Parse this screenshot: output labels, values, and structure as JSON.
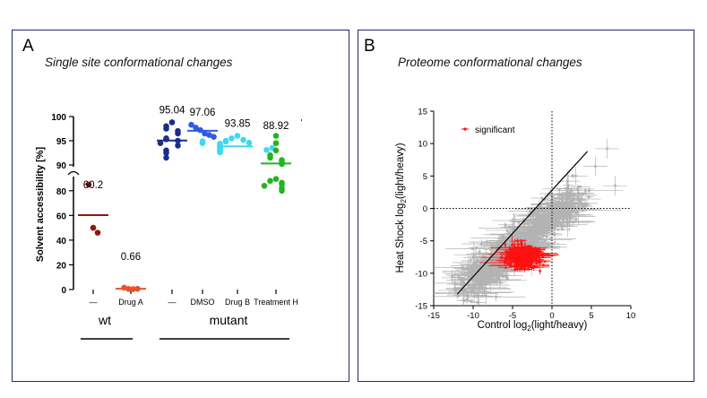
{
  "panels": {
    "a": {
      "letter": "A",
      "title": "Single site conformational changes"
    },
    "b": {
      "letter": "B",
      "title": "Proteome conformational changes"
    }
  },
  "chart_data": [
    {
      "type": "scatter",
      "ylabel": "Solvent accessibility [%]",
      "yaxis_break": {
        "lower": [
          0,
          90
        ],
        "upper": [
          90,
          100
        ]
      },
      "yticks_lower": [
        0,
        20,
        40,
        60,
        80
      ],
      "yticks_upper": [
        90,
        95,
        100
      ],
      "categories": [
        "—",
        "Drug A",
        "—",
        "DMSO",
        "Drug B",
        "Treatment H"
      ],
      "groups": [
        {
          "label": "wt",
          "categories": [
            0,
            1
          ]
        },
        {
          "label": "mutant",
          "categories": [
            2,
            3,
            4,
            5
          ]
        }
      ],
      "colors": [
        "#8b1a0e",
        "#e8532a",
        "#1a2e8c",
        "#2f5ce0",
        "#3fd8f0",
        "#22b422"
      ],
      "series": [
        {
          "category": "—",
          "mean": 60.2,
          "mean_label": "60.2",
          "points": [
            85,
            50,
            46
          ]
        },
        {
          "category": "Drug A",
          "mean": 0.66,
          "mean_label": "0.66",
          "points": [
            1.5,
            0.5,
            0.3,
            0.6
          ]
        },
        {
          "category": "—",
          "mean": 95.04,
          "mean_label": "95.04",
          "points": [
            98.8,
            98,
            97.5,
            97,
            96.5,
            95.5,
            95.3,
            95,
            94.5,
            94,
            93,
            92.5,
            91.5
          ]
        },
        {
          "category": "DMSO",
          "mean": 97.06,
          "mean_label": "97.06",
          "points": [
            98.3,
            97.7,
            97.2,
            96.5,
            96.2,
            95.8
          ]
        },
        {
          "category": "Drug B",
          "mean": 93.85,
          "mean_label": "93.85",
          "points": [
            96,
            95.5,
            95.2,
            95,
            94.8,
            94.6,
            94.4,
            94.2,
            94,
            93.8,
            93.6,
            93.4,
            93.2,
            93,
            92.8,
            92.6,
            94.5,
            93.5,
            94.9,
            93.1
          ]
        },
        {
          "category": "Treatment H",
          "mean": 88.92,
          "mean_label": "88.92",
          "points": [
            96,
            94.5,
            93,
            92,
            91.5,
            91,
            90.5,
            90.2,
            89.5,
            88,
            86.5,
            85,
            84,
            82,
            80
          ]
        }
      ],
      "mean_upper_segment_value": 90.3
    },
    {
      "type": "scatter",
      "xlabel": "Control log",
      "ylabel": "Heat Shock log",
      "label_sub": "2",
      "label_suffix": "(light/heavy)",
      "xlim": [
        -15,
        10
      ],
      "ylim": [
        -15,
        15
      ],
      "xticks": [
        -15,
        -10,
        -5,
        0,
        5,
        10
      ],
      "yticks": [
        -15,
        -10,
        -5,
        0,
        5,
        10,
        15
      ],
      "legend": {
        "label": "significant",
        "position": "top-left"
      },
      "reference_lines": {
        "x": 0,
        "y": 0,
        "style": "dotted"
      },
      "fit_line": {
        "x": [
          -12,
          4.5
        ],
        "y": [
          -13.2,
          8.8
        ]
      },
      "colors": {
        "all": "#b3b3b3",
        "significant": "#ff1010",
        "fit": "#000000"
      }
    }
  ]
}
